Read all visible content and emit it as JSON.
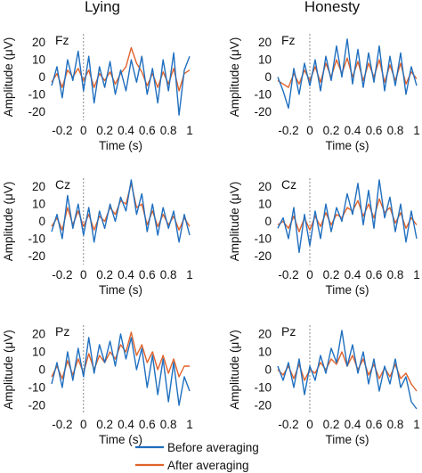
{
  "column_titles": [
    "Lying",
    "Honesty"
  ],
  "legend": {
    "before": {
      "label": "Before averaging",
      "color": "#1f6fbf"
    },
    "after": {
      "label": "After averaging",
      "color": "#e0622a"
    }
  },
  "chart_data": [
    {
      "type": "line",
      "panel": "lying-fz",
      "channel": "Fz",
      "xlabel": "Time (s)",
      "ylabel": "Amplitude (μV)",
      "xlim": [
        -0.3,
        1
      ],
      "ylim": [
        -25,
        25
      ],
      "xticks": [
        -0.2,
        0,
        0.2,
        0.4,
        0.6,
        0.8,
        1
      ],
      "xtick_labels": [
        "-0.2",
        "0",
        "0.2",
        "0.4",
        "0.6",
        "0.8",
        "1"
      ],
      "yticks": [
        -20,
        -10,
        0,
        10,
        20
      ],
      "ytick_labels": [
        "-20",
        "-10",
        "0",
        "10",
        "20"
      ],
      "x": [
        -0.3,
        -0.25,
        -0.2,
        -0.15,
        -0.1,
        -0.05,
        0,
        0.05,
        0.1,
        0.15,
        0.2,
        0.25,
        0.3,
        0.35,
        0.4,
        0.45,
        0.5,
        0.55,
        0.6,
        0.65,
        0.7,
        0.75,
        0.8,
        0.85,
        0.9,
        0.95,
        1
      ],
      "series": [
        {
          "name": "Before averaging",
          "values": [
            -5,
            6,
            -12,
            10,
            -2,
            15,
            -8,
            12,
            -15,
            6,
            -6,
            9,
            -10,
            4,
            -8,
            10,
            -3,
            12,
            -10,
            5,
            -15,
            10,
            -8,
            14,
            -22,
            4,
            12
          ]
        },
        {
          "name": "After averaging",
          "values": [
            -3,
            2,
            -6,
            4,
            0,
            5,
            -2,
            4,
            -6,
            2,
            -2,
            3,
            -4,
            2,
            6,
            17,
            8,
            3,
            -5,
            2,
            -6,
            3,
            -4,
            5,
            -8,
            2,
            4
          ]
        }
      ]
    },
    {
      "type": "line",
      "panel": "honesty-fz",
      "channel": "Fz",
      "xlabel": "Time (s)",
      "ylabel": "Amplitude (μV)",
      "xlim": [
        -0.3,
        1
      ],
      "ylim": [
        -25,
        25
      ],
      "xticks": [
        -0.2,
        0,
        0.2,
        0.4,
        0.6,
        0.8,
        1
      ],
      "xtick_labels": [
        "-0.2",
        "0",
        "0.2",
        "0.4",
        "0.6",
        "0.8",
        "1"
      ],
      "yticks": [
        -20,
        -10,
        0,
        10,
        20
      ],
      "ytick_labels": [
        "-20",
        "-10",
        "0",
        "10",
        "20"
      ],
      "x": [
        -0.3,
        -0.25,
        -0.2,
        -0.15,
        -0.1,
        -0.05,
        0,
        0.05,
        0.1,
        0.15,
        0.2,
        0.25,
        0.3,
        0.35,
        0.4,
        0.45,
        0.5,
        0.55,
        0.6,
        0.65,
        0.7,
        0.75,
        0.8,
        0.85,
        0.9,
        0.95,
        1
      ],
      "series": [
        {
          "name": "Before averaging",
          "values": [
            0,
            -8,
            -18,
            5,
            -10,
            8,
            -5,
            10,
            -8,
            12,
            -2,
            18,
            0,
            22,
            -4,
            16,
            -6,
            14,
            -3,
            18,
            -8,
            12,
            -5,
            14,
            -10,
            6,
            -5
          ]
        },
        {
          "name": "After averaging",
          "values": [
            -2,
            -4,
            -6,
            2,
            -4,
            4,
            -2,
            6,
            -3,
            8,
            0,
            10,
            2,
            11,
            0,
            9,
            -2,
            8,
            0,
            10,
            -3,
            7,
            -2,
            8,
            -4,
            3,
            -1
          ]
        }
      ]
    },
    {
      "type": "line",
      "panel": "lying-cz",
      "channel": "Cz",
      "xlabel": "Time (s)",
      "ylabel": "Amplitude (μV)",
      "xlim": [
        -0.3,
        1
      ],
      "ylim": [
        -25,
        25
      ],
      "xticks": [
        -0.2,
        0,
        0.2,
        0.4,
        0.6,
        0.8,
        1
      ],
      "xtick_labels": [
        "-0.2",
        "0",
        "0.2",
        "0.4",
        "0.6",
        "0.8",
        "1"
      ],
      "yticks": [
        -20,
        -10,
        0,
        10,
        20
      ],
      "ytick_labels": [
        "-20",
        "-10",
        "0",
        "10",
        "20"
      ],
      "x": [
        -0.3,
        -0.25,
        -0.2,
        -0.15,
        -0.1,
        -0.05,
        0,
        0.05,
        0.1,
        0.15,
        0.2,
        0.25,
        0.3,
        0.35,
        0.4,
        0.45,
        0.5,
        0.55,
        0.6,
        0.65,
        0.7,
        0.75,
        0.8,
        0.85,
        0.9,
        0.95,
        1
      ],
      "series": [
        {
          "name": "Before averaging",
          "values": [
            -6,
            4,
            -10,
            15,
            -4,
            10,
            -8,
            8,
            -12,
            6,
            -4,
            10,
            0,
            14,
            6,
            24,
            4,
            16,
            -6,
            10,
            -8,
            8,
            -4,
            6,
            -12,
            4,
            -8
          ]
        },
        {
          "name": "After averaging",
          "values": [
            -3,
            2,
            -5,
            8,
            -2,
            6,
            -3,
            4,
            -5,
            3,
            0,
            8,
            4,
            12,
            10,
            22,
            8,
            10,
            -2,
            6,
            -3,
            4,
            -2,
            3,
            -5,
            2,
            -3
          ]
        }
      ]
    },
    {
      "type": "line",
      "panel": "honesty-cz",
      "channel": "Cz",
      "xlabel": "Time (s)",
      "ylabel": "Amplitude (μV)",
      "xlim": [
        -0.3,
        1
      ],
      "ylim": [
        -25,
        25
      ],
      "xticks": [
        -0.2,
        0,
        0.2,
        0.4,
        0.6,
        0.8,
        1
      ],
      "xtick_labels": [
        "-0.2",
        "0",
        "0.2",
        "0.4",
        "0.6",
        "0.8",
        "1"
      ],
      "yticks": [
        -20,
        -10,
        0,
        10,
        20
      ],
      "ytick_labels": [
        "-20",
        "-10",
        "0",
        "10",
        "20"
      ],
      "x": [
        -0.3,
        -0.25,
        -0.2,
        -0.15,
        -0.1,
        -0.05,
        0,
        0.05,
        0.1,
        0.15,
        0.2,
        0.25,
        0.3,
        0.35,
        0.4,
        0.45,
        0.5,
        0.55,
        0.6,
        0.65,
        0.7,
        0.75,
        0.8,
        0.85,
        0.9,
        0.95,
        1
      ],
      "series": [
        {
          "name": "Before averaging",
          "values": [
            -4,
            2,
            -10,
            8,
            -18,
            4,
            -14,
            6,
            -10,
            10,
            -6,
            8,
            0,
            16,
            4,
            22,
            -2,
            18,
            -4,
            24,
            2,
            14,
            -6,
            10,
            -12,
            6,
            -10
          ]
        },
        {
          "name": "After averaging",
          "values": [
            -2,
            0,
            -4,
            3,
            -6,
            2,
            -5,
            3,
            -3,
            5,
            -2,
            4,
            2,
            8,
            6,
            12,
            3,
            10,
            2,
            13,
            5,
            8,
            -1,
            5,
            -4,
            2,
            -2
          ]
        }
      ]
    },
    {
      "type": "line",
      "panel": "lying-pz",
      "channel": "Pz",
      "xlabel": "Time (s)",
      "ylabel": "Amplitude (μV)",
      "xlim": [
        -0.3,
        1
      ],
      "ylim": [
        -25,
        25
      ],
      "xticks": [
        -0.2,
        0,
        0.2,
        0.4,
        0.6,
        0.8,
        1
      ],
      "xtick_labels": [
        "-0.2",
        "0",
        "0.2",
        "0.4",
        "0.6",
        "0.8",
        "1"
      ],
      "yticks": [
        -20,
        -10,
        0,
        10,
        20
      ],
      "ytick_labels": [
        "-20",
        "-10",
        "0",
        "10",
        "20"
      ],
      "x": [
        -0.3,
        -0.25,
        -0.2,
        -0.15,
        -0.1,
        -0.05,
        0,
        0.05,
        0.1,
        0.15,
        0.2,
        0.25,
        0.3,
        0.35,
        0.4,
        0.45,
        0.5,
        0.55,
        0.6,
        0.65,
        0.7,
        0.75,
        0.8,
        0.85,
        0.9,
        0.95,
        1
      ],
      "series": [
        {
          "name": "Before averaging",
          "values": [
            -8,
            4,
            -10,
            10,
            -6,
            12,
            -4,
            18,
            -2,
            14,
            4,
            16,
            2,
            20,
            6,
            18,
            0,
            12,
            -10,
            8,
            -14,
            6,
            -18,
            4,
            -20,
            -4,
            -12
          ]
        },
        {
          "name": "After averaging",
          "values": [
            -4,
            2,
            -5,
            5,
            -3,
            6,
            -2,
            9,
            0,
            8,
            4,
            10,
            6,
            14,
            10,
            21,
            8,
            14,
            4,
            10,
            0,
            8,
            -2,
            6,
            -4,
            2,
            2
          ]
        }
      ]
    },
    {
      "type": "line",
      "panel": "honesty-pz",
      "channel": "Pz",
      "xlabel": "Time (s)",
      "ylabel": "Amplitude (μV)",
      "xlim": [
        -0.3,
        1
      ],
      "ylim": [
        -25,
        25
      ],
      "xticks": [
        -0.2,
        0,
        0.2,
        0.4,
        0.6,
        0.8,
        1
      ],
      "xtick_labels": [
        "-0.2",
        "0",
        "0.2",
        "0.4",
        "0.6",
        "0.8",
        "1"
      ],
      "yticks": [
        -20,
        -10,
        0,
        10,
        20
      ],
      "ytick_labels": [
        "-20",
        "-10",
        "0",
        "10",
        "20"
      ],
      "x": [
        -0.3,
        -0.25,
        -0.2,
        -0.15,
        -0.1,
        -0.05,
        0,
        0.05,
        0.1,
        0.15,
        0.2,
        0.25,
        0.3,
        0.35,
        0.4,
        0.45,
        0.5,
        0.55,
        0.6,
        0.65,
        0.7,
        0.75,
        0.8,
        0.85,
        0.9,
        0.95,
        1
      ],
      "series": [
        {
          "name": "Before averaging",
          "values": [
            2,
            -6,
            4,
            -10,
            6,
            -14,
            2,
            -6,
            8,
            -2,
            12,
            4,
            22,
            2,
            14,
            -2,
            10,
            -8,
            6,
            -12,
            2,
            -8,
            6,
            -10,
            -4,
            -18,
            -22
          ]
        },
        {
          "name": "After averaging",
          "values": [
            0,
            -3,
            2,
            -5,
            3,
            -6,
            0,
            -2,
            4,
            0,
            6,
            3,
            10,
            2,
            8,
            0,
            6,
            -3,
            3,
            -5,
            1,
            -4,
            3,
            -5,
            -2,
            -8,
            -12
          ]
        }
      ]
    }
  ]
}
